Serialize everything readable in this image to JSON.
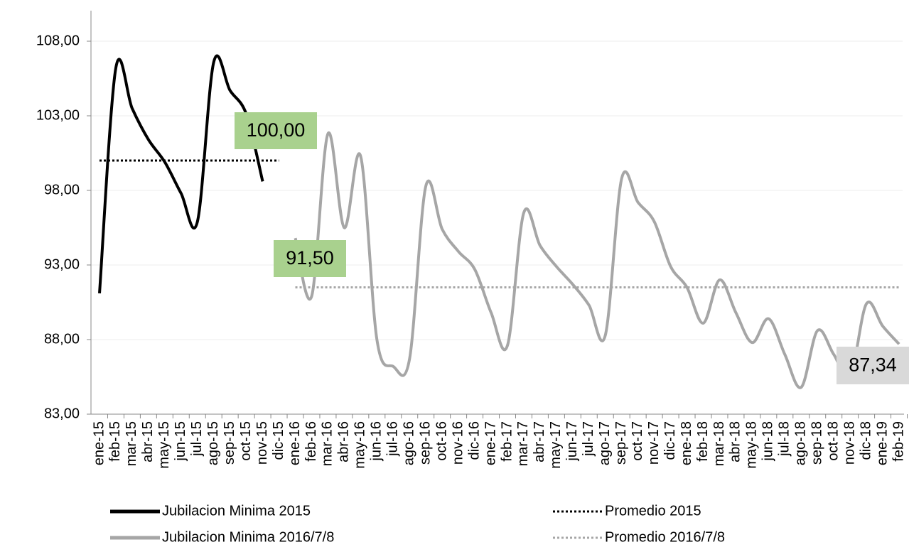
{
  "chart_data": {
    "type": "line",
    "categories": [
      "ene-15",
      "feb-15",
      "mar-15",
      "abr-15",
      "may-15",
      "jun-15",
      "jul-15",
      "ago-15",
      "sep-15",
      "oct-15",
      "nov-15",
      "dic-15",
      "ene-16",
      "feb-16",
      "mar-16",
      "abr-16",
      "may-16",
      "jun-16",
      "jul-16",
      "ago-16",
      "sep-16",
      "oct-16",
      "nov-16",
      "dic-16",
      "ene-17",
      "feb-17",
      "mar-17",
      "abr-17",
      "may-17",
      "jun-17",
      "jul-17",
      "ago-17",
      "sep-17",
      "oct-17",
      "nov-17",
      "dic-17",
      "ene-18",
      "feb-18",
      "mar-18",
      "abr-18",
      "may-18",
      "jun-18",
      "jul-18",
      "ago-18",
      "sep-18",
      "oct-18",
      "nov-18",
      "dic-18",
      "ene-19",
      "feb-19"
    ],
    "series": [
      {
        "name": "Jubilacion Minima 2015",
        "color": "#000000",
        "style": "solid",
        "values": [
          91.1,
          106.2,
          103.5,
          101.4,
          99.9,
          97.8,
          95.9,
          106.6,
          104.7,
          103.1,
          98.6,
          null,
          null,
          null,
          null,
          null,
          null,
          null,
          null,
          null,
          null,
          null,
          null,
          null,
          null,
          null,
          null,
          null,
          null,
          null,
          null,
          null,
          null,
          null,
          null,
          null,
          null,
          null,
          null,
          null,
          null,
          null,
          null,
          null,
          null,
          null,
          null,
          null,
          null,
          null
        ]
      },
      {
        "name": "Promedio 2015",
        "color": "#000000",
        "style": "dotted",
        "values": [
          100,
          100,
          100,
          100,
          100,
          100,
          100,
          100,
          100,
          100,
          100,
          100,
          null,
          null,
          null,
          null,
          null,
          null,
          null,
          null,
          null,
          null,
          null,
          null,
          null,
          null,
          null,
          null,
          null,
          null,
          null,
          null,
          null,
          null,
          null,
          null,
          null,
          null,
          null,
          null,
          null,
          null,
          null,
          null,
          null,
          null,
          null,
          null,
          null,
          null
        ]
      },
      {
        "name": "Jubilacion Minima 2016/7/8",
        "color": "#a6a6a6",
        "style": "solid",
        "values": [
          null,
          null,
          null,
          null,
          null,
          null,
          null,
          null,
          null,
          null,
          null,
          null,
          94.8,
          90.9,
          101.8,
          95.5,
          100.3,
          88.0,
          86.2,
          86.7,
          98.3,
          95.4,
          93.9,
          92.7,
          89.8,
          87.6,
          96.5,
          94.3,
          92.9,
          91.7,
          90.3,
          88.3,
          98.8,
          97.2,
          95.9,
          92.9,
          91.5,
          89.1,
          92.0,
          89.8,
          87.8,
          89.4,
          87.0,
          84.8,
          88.6,
          87.0,
          85.5,
          90.4,
          88.9,
          87.7
        ]
      },
      {
        "name": "Promedio 2016/7/8",
        "color": "#a6a6a6",
        "style": "dotted",
        "values": [
          null,
          null,
          null,
          null,
          null,
          null,
          null,
          null,
          null,
          null,
          null,
          null,
          91.5,
          91.5,
          91.5,
          91.5,
          91.5,
          91.5,
          91.5,
          91.5,
          91.5,
          91.5,
          91.5,
          91.5,
          91.5,
          91.5,
          91.5,
          91.5,
          91.5,
          91.5,
          91.5,
          91.5,
          91.5,
          91.5,
          91.5,
          91.5,
          91.5,
          91.5,
          91.5,
          91.5,
          91.5,
          91.5,
          91.5,
          91.5,
          91.5,
          91.5,
          91.5,
          91.5,
          91.5,
          91.5
        ]
      }
    ],
    "annotations": [
      {
        "text": "100,00",
        "color": "#a9d18e"
      },
      {
        "text": "91,50",
        "color": "#a9d18e"
      },
      {
        "text": "87,34",
        "color": "#d9d9d9"
      }
    ],
    "ylim": [
      83,
      108
    ],
    "yticks": [
      {
        "value": 83,
        "label": "83,00"
      },
      {
        "value": 88,
        "label": "88,00"
      },
      {
        "value": 93,
        "label": "93,00"
      },
      {
        "value": 98,
        "label": "98,00"
      },
      {
        "value": 103,
        "label": "103,00"
      },
      {
        "value": 108,
        "label": "108,00"
      }
    ],
    "grid": true
  }
}
